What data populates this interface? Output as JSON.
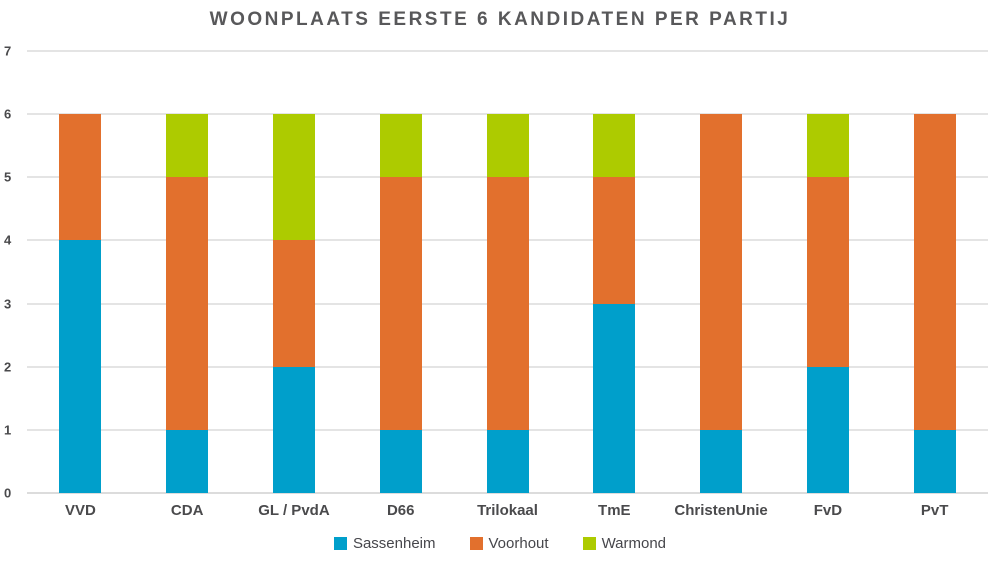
{
  "chart_data": {
    "type": "bar",
    "subtype": "stacked-vertical",
    "title": "WOONPLAATS EERSTE 6 KANDIDATEN PER PARTIJ",
    "categories": [
      "VVD",
      "CDA",
      "GL / PvdA",
      "D66",
      "Trilokaal",
      "TmE",
      "ChristenUnie",
      "FvD",
      "PvT"
    ],
    "series": [
      {
        "name": "Sassenheim",
        "color": "#009FCB",
        "values": [
          4,
          1,
          2,
          1,
          1,
          3,
          1,
          2,
          1
        ]
      },
      {
        "name": "Voorhout",
        "color": "#E2702D",
        "values": [
          2,
          4,
          2,
          4,
          4,
          2,
          5,
          3,
          5
        ]
      },
      {
        "name": "Warmond",
        "color": "#ADCB00",
        "values": [
          0,
          1,
          2,
          1,
          1,
          1,
          0,
          1,
          0
        ]
      }
    ],
    "xlabel": "",
    "ylabel": "",
    "ylim": [
      0,
      7
    ],
    "yticks": [
      0,
      1,
      2,
      3,
      4,
      5,
      6,
      7
    ],
    "grid": true,
    "legend_position": "bottom",
    "colors": {
      "title_text": "#58585a",
      "axis_text": "#4a4a4c",
      "gridline": "#e4e4e4",
      "background": "#ffffff"
    }
  }
}
